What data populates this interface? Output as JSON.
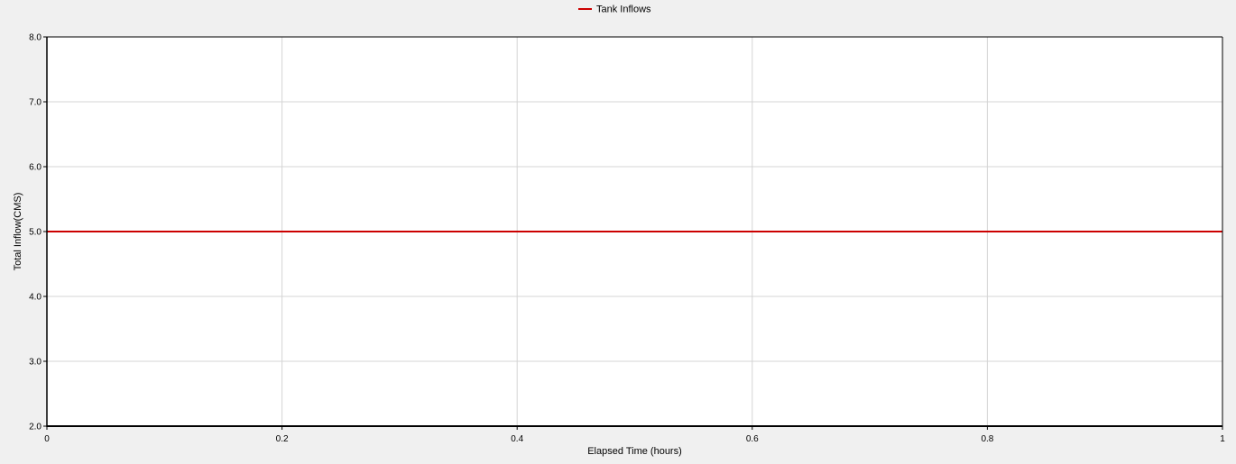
{
  "chart_data": {
    "type": "line",
    "title": "",
    "xlabel": "Elapsed Time (hours)",
    "ylabel": "Total Inflow(CMS)",
    "xlim": [
      0,
      1
    ],
    "ylim": [
      2.0,
      8.0
    ],
    "x_ticks": [
      0,
      0.2,
      0.4,
      0.6,
      0.8,
      1
    ],
    "x_tick_labels": [
      "0",
      "0.2",
      "0.4",
      "0.6",
      "0.8",
      "1"
    ],
    "y_ticks": [
      2.0,
      3.0,
      4.0,
      5.0,
      6.0,
      7.0,
      8.0
    ],
    "y_tick_labels": [
      "2.0",
      "3.0",
      "4.0",
      "5.0",
      "6.0",
      "7.0",
      "8.0"
    ],
    "grid": true,
    "legend_position": "top-center",
    "series": [
      {
        "name": "Tank Inflows",
        "color": "#cc0000",
        "x": [
          0,
          1
        ],
        "y": [
          5.0,
          5.0
        ]
      }
    ]
  }
}
